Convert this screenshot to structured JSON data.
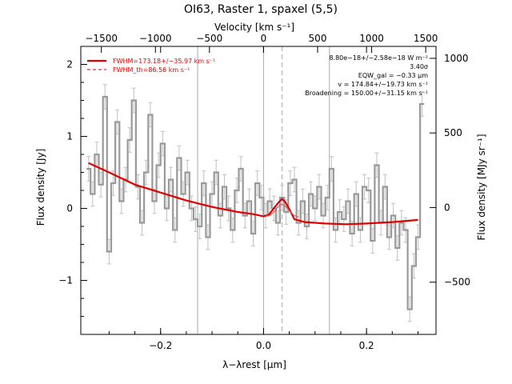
{
  "title": "OI63, Raster 1, spaxel (5,5)",
  "chart_data": {
    "type": "line",
    "title": "OI63, Raster 1, spaxel (5,5)",
    "xlabel": "λ−λrest [μm]",
    "ylabel": "Flux density [Jy]",
    "top_xlabel": "Velocity [km s⁻¹]",
    "right_ylabel": "Flux density [MJy sr⁻¹]",
    "xlim": [
      -0.355,
      0.335
    ],
    "ylim": [
      -1.75,
      2.25
    ],
    "top_xlim": [
      -1690,
      1595
    ],
    "right_ylim": [
      -850,
      1080
    ],
    "x_ticks": [
      -0.2,
      0.0,
      0.2
    ],
    "x_tick_labels": [
      "−0.2",
      "0.0",
      "0.2"
    ],
    "y_ticks": [
      -1,
      0,
      1,
      2
    ],
    "y_tick_labels": [
      "−1",
      "0",
      "1",
      "2"
    ],
    "top_ticks": [
      -1500,
      -1000,
      -500,
      0,
      500,
      1000,
      1500
    ],
    "top_tick_labels": [
      "−1500",
      "−1000",
      "−500",
      "0",
      "500",
      "1000",
      "1500"
    ],
    "right_ticks": [
      -500,
      0,
      500,
      1000
    ],
    "right_tick_labels": [
      "−500",
      "0",
      "500",
      "1000"
    ],
    "vertical_lines": [
      {
        "x": -0.128,
        "style": "solid"
      },
      {
        "x": 0.0,
        "style": "solid"
      },
      {
        "x": 0.036,
        "style": "dashed"
      },
      {
        "x": 0.128,
        "style": "solid"
      }
    ],
    "legend": {
      "placement": "top-left",
      "entries": [
        {
          "label": "FWHM=173.18+/−35.97 km s⁻¹",
          "color": "#e00000",
          "style": "solid"
        },
        {
          "label": "FWHM_th=86.56 km s⁻¹",
          "color": "#e00000",
          "style": "dashed"
        }
      ]
    },
    "annotations": [
      "8.80e−18+/−2.58e−18 W m⁻²",
      "3.40σ",
      "EQW_gal = −0.33 μm",
      "v = 174.84+/−19.73 km s⁻¹",
      "Broadening = 150.00+/−31.15 km s⁻¹"
    ],
    "series": [
      {
        "type": "step",
        "color": "#999999",
        "errors": 0.17,
        "x": [
          -0.34,
          -0.332,
          -0.324,
          -0.316,
          -0.308,
          -0.3,
          -0.292,
          -0.284,
          -0.276,
          -0.268,
          -0.26,
          -0.252,
          -0.244,
          -0.236,
          -0.228,
          -0.22,
          -0.212,
          -0.204,
          -0.196,
          -0.188,
          -0.18,
          -0.172,
          -0.164,
          -0.156,
          -0.148,
          -0.14,
          -0.132,
          -0.124,
          -0.116,
          -0.108,
          -0.1,
          -0.092,
          -0.084,
          -0.076,
          -0.068,
          -0.06,
          -0.052,
          -0.044,
          -0.036,
          -0.028,
          -0.02,
          -0.012,
          -0.004,
          0.004,
          0.012,
          0.02,
          0.028,
          0.036,
          0.044,
          0.052,
          0.06,
          0.068,
          0.076,
          0.084,
          0.092,
          0.1,
          0.108,
          0.116,
          0.124,
          0.132,
          0.14,
          0.148,
          0.156,
          0.164,
          0.172,
          0.18,
          0.188,
          0.196,
          0.204,
          0.212,
          0.22,
          0.228,
          0.236,
          0.244,
          0.252,
          0.26,
          0.268,
          0.276,
          0.284,
          0.292,
          0.3,
          0.308
        ],
        "values": [
          0.55,
          0.2,
          0.75,
          0.33,
          1.55,
          -0.6,
          0.35,
          1.2,
          0.1,
          0.4,
          0.95,
          1.5,
          0.3,
          -0.2,
          0.5,
          1.3,
          0.1,
          0.6,
          0.9,
          0.0,
          0.4,
          -0.3,
          0.7,
          0.2,
          0.5,
          0.0,
          -0.15,
          -0.25,
          0.35,
          -0.4,
          0.2,
          0.5,
          -0.1,
          0.3,
          0.0,
          -0.3,
          0.25,
          0.55,
          -0.1,
          0.1,
          -0.35,
          0.35,
          0.15,
          -0.1,
          0.1,
          0.0,
          -0.2,
          0.15,
          -0.05,
          0.35,
          0.4,
          -0.2,
          0.1,
          -0.25,
          0.2,
          0.0,
          0.3,
          -0.1,
          0.15,
          0.55,
          -0.3,
          -0.05,
          -0.15,
          0.1,
          -0.35,
          0.2,
          -0.3,
          0.3,
          0.25,
          -0.45,
          0.6,
          -0.2,
          0.3,
          -0.4,
          -0.1,
          -0.55,
          -0.2,
          -0.3,
          -1.4,
          -0.8,
          -0.4,
          1.45
        ]
      },
      {
        "type": "line",
        "color": "#e00000",
        "x": [
          -0.34,
          -0.3,
          -0.25,
          -0.2,
          -0.15,
          -0.1,
          -0.05,
          -0.02,
          0.0,
          0.01,
          0.02,
          0.03,
          0.036,
          0.042,
          0.05,
          0.06,
          0.08,
          0.12,
          0.16,
          0.2,
          0.25,
          0.3
        ],
        "values": [
          0.63,
          0.5,
          0.33,
          0.22,
          0.11,
          0.02,
          -0.05,
          -0.08,
          -0.11,
          -0.09,
          0.0,
          0.09,
          0.13,
          0.09,
          -0.01,
          -0.15,
          -0.19,
          -0.21,
          -0.22,
          -0.21,
          -0.19,
          -0.16
        ]
      },
      {
        "type": "line",
        "color": "#cc6666",
        "x": [
          0.004,
          0.012,
          0.02,
          0.028,
          0.036,
          0.044,
          0.052,
          0.06,
          0.068
        ],
        "values": [
          -0.11,
          -0.1,
          -0.05,
          0.02,
          0.06,
          0.02,
          -0.05,
          -0.1,
          -0.12
        ]
      }
    ]
  }
}
